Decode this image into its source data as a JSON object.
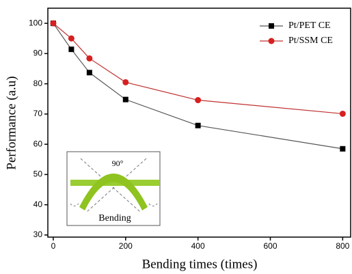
{
  "chart_data": {
    "type": "line",
    "x_label": "Bending times (times)",
    "y_label": "Performance (a.u)",
    "series": [
      {
        "name": "Pt/PET CE",
        "color": "#000000",
        "line_color": "#555555",
        "marker": "square",
        "x": [
          0,
          50,
          100,
          200,
          400,
          800
        ],
        "values": [
          100,
          91.4,
          83.7,
          74.8,
          66.2,
          58.5
        ]
      },
      {
        "name": "Pt/SSM CE",
        "color": "#d62020",
        "line_color": "#c03030",
        "marker": "circle",
        "x": [
          0,
          50,
          100,
          200,
          400,
          800
        ],
        "values": [
          100,
          95,
          88.4,
          80.5,
          74.6,
          70.1
        ]
      }
    ],
    "xlim": [
      -15,
      822
    ],
    "xticks": [
      0,
      200,
      400,
      600,
      800
    ],
    "ylim": [
      29.3,
      105
    ],
    "yticks": [
      30,
      40,
      50,
      60,
      70,
      80,
      90,
      100
    ],
    "legend": "upper right",
    "inset_labels": [
      "90°",
      "Bending"
    ]
  }
}
